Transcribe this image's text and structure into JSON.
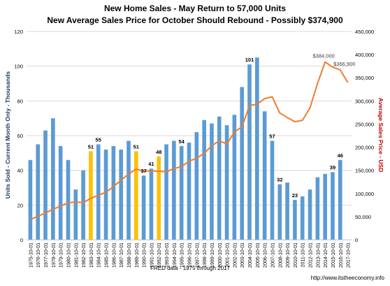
{
  "chart_data": {
    "type": "bar",
    "title": "New Home Sales - May Return to 57,000 Units",
    "subtitle": "New Average Sales Price for October Should Rebound  - Possibly $374,900",
    "xlabel": "FRED data - 1975 through 2017",
    "ylabel": "Units Sold - Current Month Only - Thousands",
    "y2label": "Average Sales Price - USD",
    "source_note": "http://www.itstheeconomy.info",
    "ylim": [
      0,
      120
    ],
    "y2lim": [
      0,
      450000
    ],
    "yticks": [
      "0",
      "20",
      "40",
      "60",
      "80",
      "100",
      "120"
    ],
    "y2ticks": [
      "0",
      "50,000",
      "100,000",
      "150,000",
      "200,000",
      "250,000",
      "300,000",
      "350,000",
      "400,000",
      "450,000"
    ],
    "grid": true,
    "categories": [
      "1975-10-01",
      "1976-10-01",
      "1977-10-01",
      "1978-10-01",
      "1979-10-01",
      "1980-10-01",
      "1981-10-01",
      "1982-10-01",
      "1983-10-01",
      "1984-10-01",
      "1985-10-01",
      "1986-10-01",
      "1987-10-01",
      "1988-10-01",
      "1989-10-01",
      "1990-10-01",
      "1991-10-01",
      "1992-10-01",
      "1993-10-01",
      "1994-10-01",
      "1995-10-01",
      "1996-10-01",
      "1997-10-01",
      "1998-10-01",
      "1999-10-01",
      "2000-10-01",
      "2001-10-01",
      "2002-10-01",
      "2003-10-01",
      "2004-10-01",
      "2005-10-01",
      "2006-10-01",
      "2007-10-01",
      "2008-10-01",
      "2009-10-01",
      "2010-10-01",
      "2011-10-01",
      "2012-10-01",
      "2013-10-01",
      "2014-10-01",
      "2015-10-01",
      "2016-10-01",
      "2017-10-01"
    ],
    "colors": {
      "bars": "#5b9bd5",
      "highlight": "#ffc000",
      "line": "#ed7d31",
      "y2label": "#c00000"
    },
    "series": [
      {
        "name": "Units Sold",
        "kind": "bar",
        "values": [
          46,
          55,
          63,
          70,
          54,
          46,
          29,
          40,
          51,
          55,
          52,
          54,
          52,
          57,
          51,
          37,
          41,
          48,
          55,
          57,
          54,
          56,
          62,
          69,
          67,
          71,
          66,
          72,
          88,
          101,
          105,
          74,
          57,
          32,
          33,
          23,
          25,
          29,
          36,
          38,
          39,
          46,
          null
        ],
        "highlight_indices": [
          8,
          14,
          17
        ]
      },
      {
        "name": "Average Sales Price",
        "kind": "line",
        "axis": "right",
        "values": [
          44000,
          51000,
          58000,
          66000,
          73000,
          80000,
          82000,
          80000,
          90000,
          96000,
          103000,
          115000,
          129000,
          142000,
          153000,
          148000,
          149000,
          148000,
          147000,
          154000,
          158000,
          170000,
          176000,
          187000,
          203000,
          214000,
          207000,
          233000,
          244000,
          290000,
          293000,
          305000,
          309000,
          274000,
          264000,
          255000,
          258000,
          285000,
          338000,
          384000,
          373000,
          367000,
          340000
        ]
      }
    ],
    "data_labels": [
      {
        "index": 8,
        "text": "51"
      },
      {
        "index": 9,
        "text": "55"
      },
      {
        "index": 14,
        "text": "51"
      },
      {
        "index": 15,
        "text": "37"
      },
      {
        "index": 16,
        "text": "41"
      },
      {
        "index": 17,
        "text": "48"
      },
      {
        "index": 20,
        "text": "54"
      },
      {
        "index": 29,
        "text": "101"
      },
      {
        "index": 32,
        "text": "57"
      },
      {
        "index": 33,
        "text": "32"
      },
      {
        "index": 35,
        "text": "23"
      },
      {
        "index": 40,
        "text": "39"
      },
      {
        "index": 41,
        "text": "46"
      }
    ],
    "line_labels": [
      {
        "index": 39,
        "text": "$384,000"
      },
      {
        "index": 41,
        "text": "$366,900"
      }
    ]
  }
}
